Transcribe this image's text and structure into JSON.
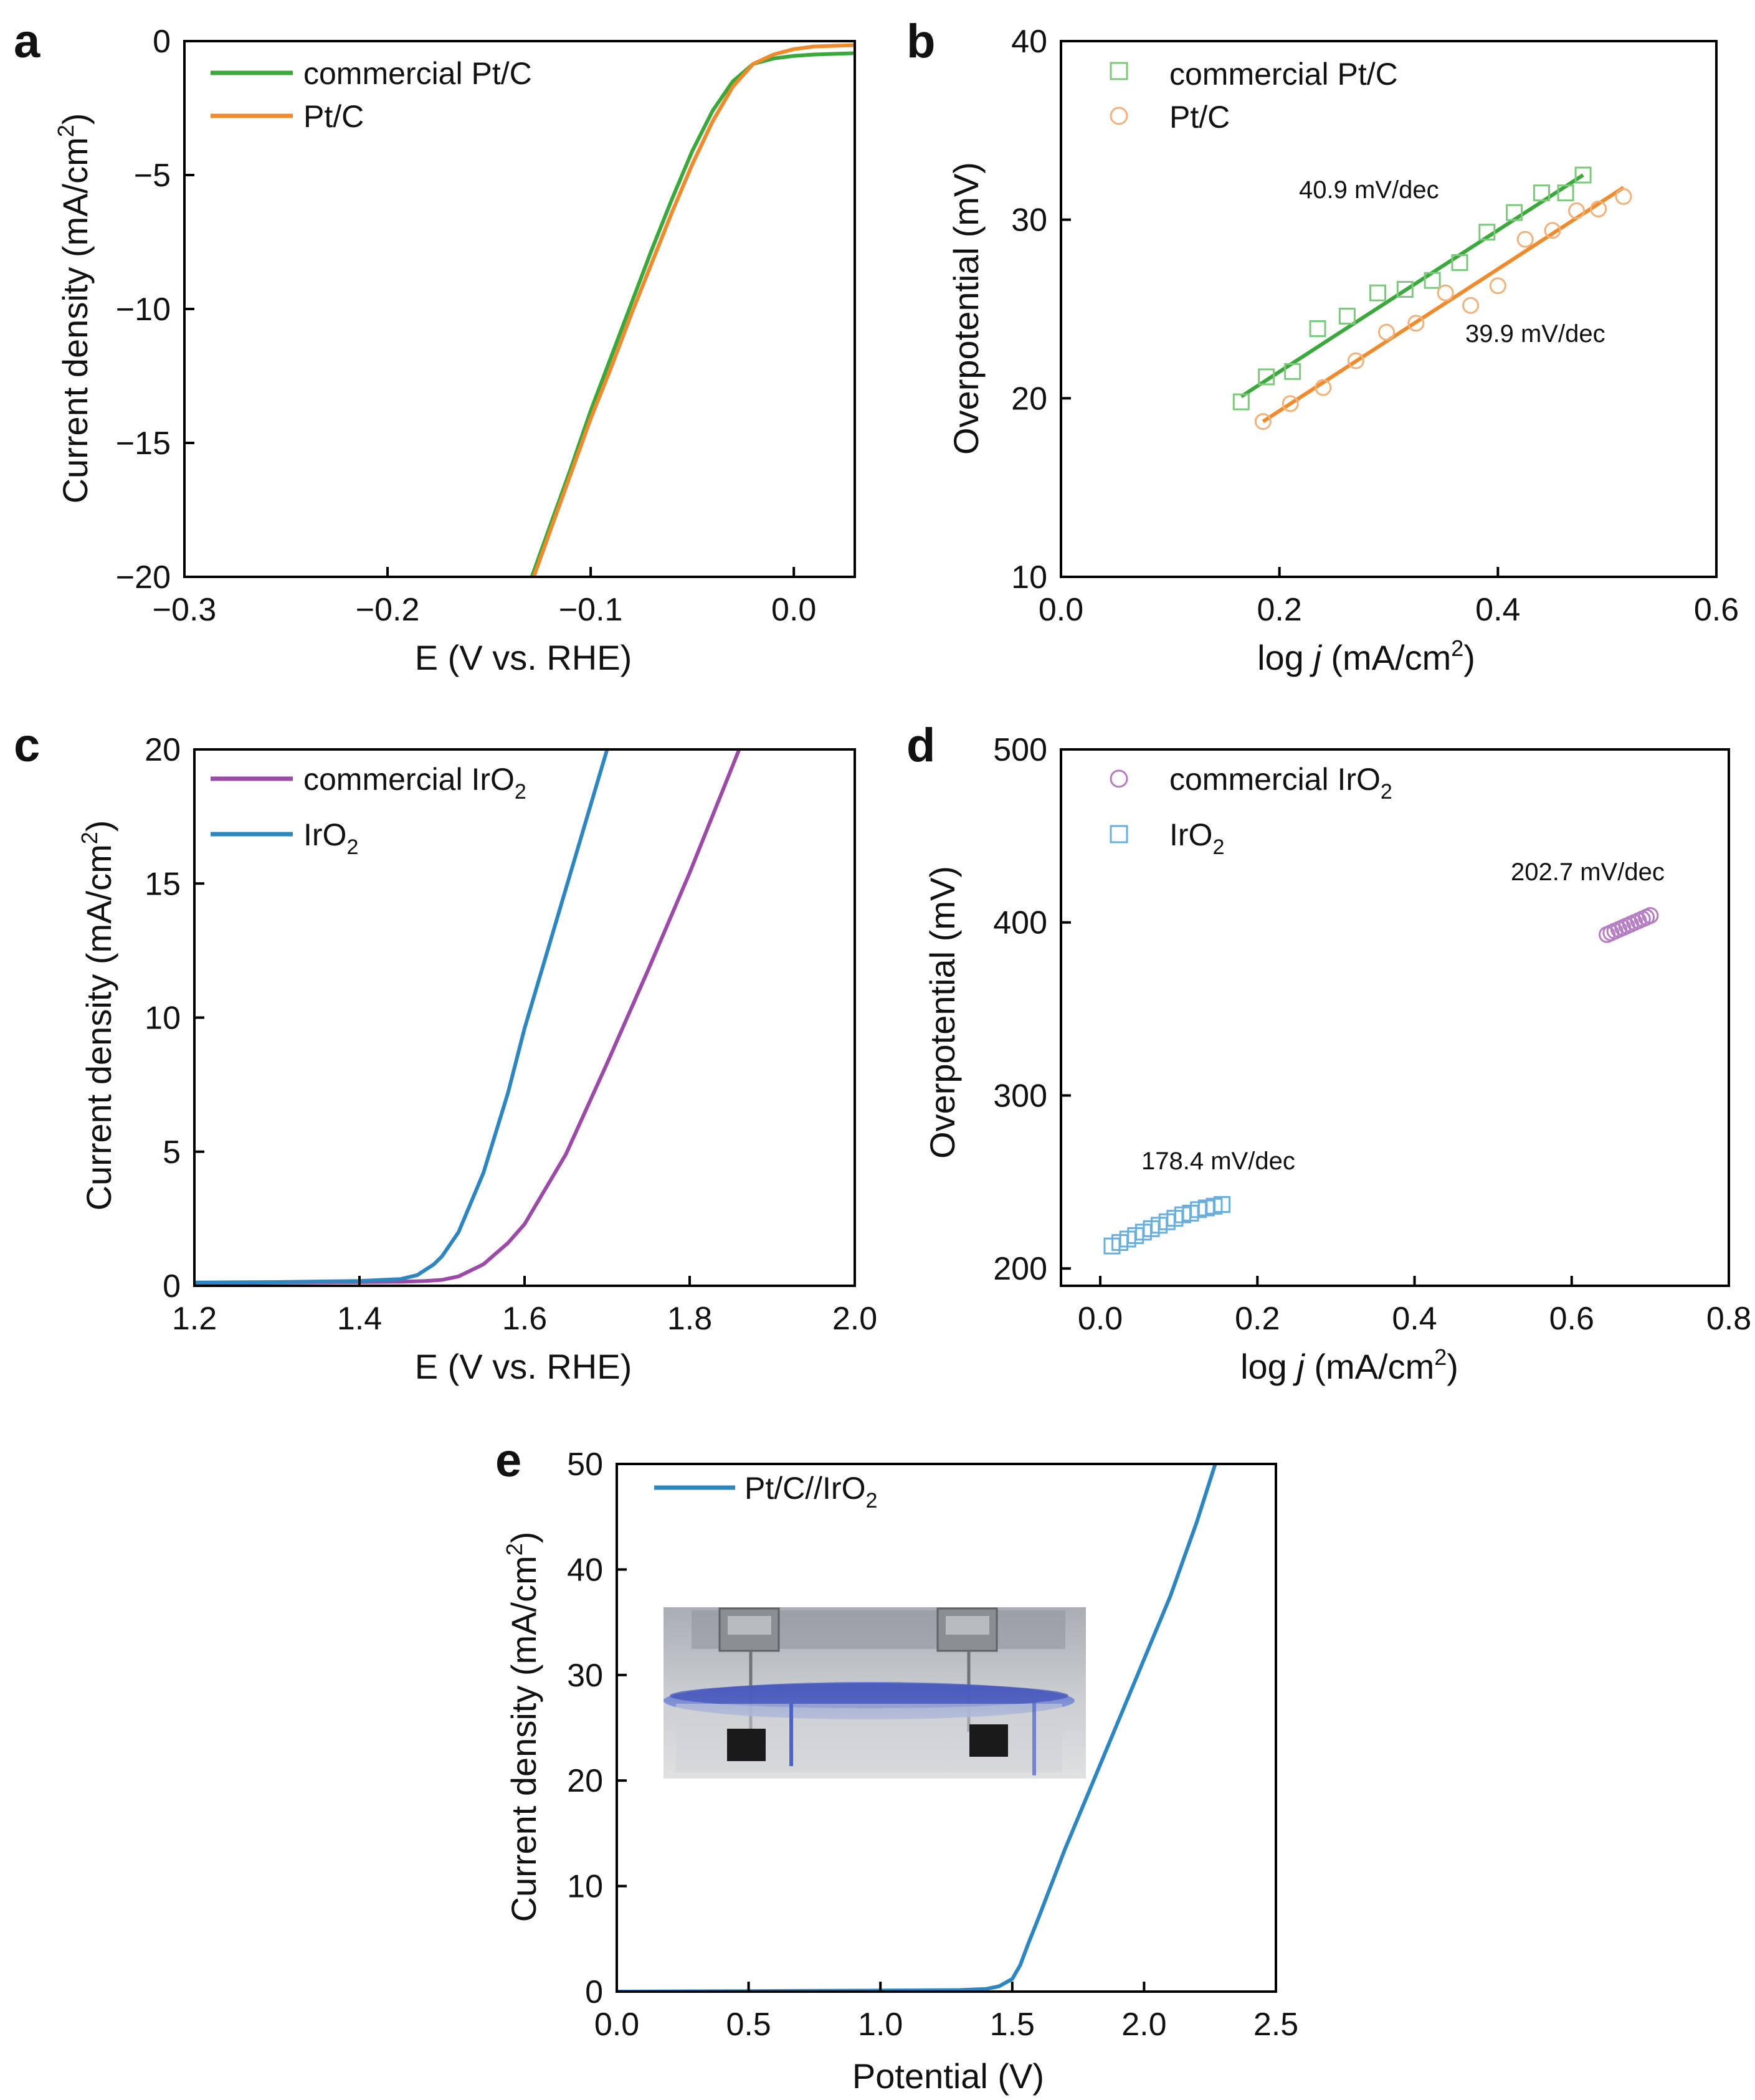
{
  "chart_data": [
    {
      "panel": "a",
      "type": "line",
      "xlabel": "E (V vs. RHE)",
      "ylabel": "Current density (mA/cm2)",
      "xlim": [
        -0.3,
        0.03
      ],
      "ylim": [
        -20,
        0
      ],
      "xticks": [
        -0.3,
        -0.2,
        -0.1,
        0.0
      ],
      "xtick_labels": [
        "−0.3",
        "−0.2",
        "−0.1",
        "0.0"
      ],
      "yticks": [
        -20,
        -15,
        -10,
        -5,
        0
      ],
      "ytick_labels": [
        "−20",
        "−15",
        "−10",
        "−5",
        "0"
      ],
      "series": [
        {
          "name": "commercial Pt/C",
          "color": "#3aa83a",
          "x": [
            -0.129,
            -0.12,
            -0.11,
            -0.1,
            -0.09,
            -0.08,
            -0.07,
            -0.06,
            -0.05,
            -0.04,
            -0.03,
            -0.02,
            -0.01,
            0.0,
            0.01,
            0.03
          ],
          "y": [
            -20,
            -18.1,
            -16.0,
            -13.8,
            -11.8,
            -9.8,
            -7.8,
            -5.9,
            -4.1,
            -2.6,
            -1.5,
            -0.85,
            -0.65,
            -0.55,
            -0.5,
            -0.45
          ]
        },
        {
          "name": "Pt/C",
          "color": "#ef8b2c",
          "x": [
            -0.128,
            -0.12,
            -0.11,
            -0.1,
            -0.09,
            -0.08,
            -0.07,
            -0.06,
            -0.05,
            -0.04,
            -0.03,
            -0.02,
            -0.01,
            0.0,
            0.01,
            0.03
          ],
          "y": [
            -20,
            -18.3,
            -16.2,
            -14.1,
            -12.2,
            -10.2,
            -8.3,
            -6.4,
            -4.6,
            -3.0,
            -1.7,
            -0.85,
            -0.5,
            -0.3,
            -0.2,
            -0.15
          ]
        }
      ]
    },
    {
      "panel": "b",
      "type": "scatter",
      "xlabel": "log j (mA/cm2)",
      "ylabel": "Overpotential (mV)",
      "xlim": [
        0.0,
        0.6
      ],
      "ylim": [
        10,
        40
      ],
      "xticks": [
        0.0,
        0.2,
        0.4,
        0.6
      ],
      "xtick_labels": [
        "0.0",
        "0.2",
        "0.4",
        "0.6"
      ],
      "yticks": [
        10,
        20,
        30,
        40
      ],
      "ytick_labels": [
        "10",
        "20",
        "30",
        "40"
      ],
      "series": [
        {
          "name": "commercial Pt/C",
          "color": "#3aa83a",
          "marker": "square",
          "x": [
            0.165,
            0.188,
            0.212,
            0.235,
            0.262,
            0.29,
            0.315,
            0.34,
            0.365,
            0.39,
            0.415,
            0.44,
            0.462,
            0.478
          ],
          "y": [
            19.8,
            21.2,
            21.5,
            23.9,
            24.6,
            25.9,
            26.1,
            26.6,
            27.6,
            29.3,
            30.4,
            31.5,
            31.5,
            32.5
          ],
          "fit": {
            "x": [
              0.165,
              0.478
            ],
            "y": [
              20.1,
              32.5
            ]
          },
          "annotation": "40.9 mV/dec"
        },
        {
          "name": "Pt/C",
          "color": "#ef8b2c",
          "marker": "circle",
          "x": [
            0.185,
            0.21,
            0.24,
            0.27,
            0.298,
            0.325,
            0.352,
            0.375,
            0.4,
            0.425,
            0.45,
            0.472,
            0.492,
            0.515
          ],
          "y": [
            18.7,
            19.7,
            20.6,
            22.1,
            23.7,
            24.2,
            25.9,
            25.2,
            26.3,
            28.9,
            29.4,
            30.5,
            30.6,
            31.3
          ],
          "fit": {
            "x": [
              0.185,
              0.515
            ],
            "y": [
              18.7,
              31.8
            ]
          },
          "annotation": "39.9 mV/dec"
        }
      ]
    },
    {
      "panel": "c",
      "type": "line",
      "xlabel": "E (V vs. RHE)",
      "ylabel": "Current density (mA/cm2)",
      "xlim": [
        1.2,
        2.0
      ],
      "ylim": [
        0,
        20
      ],
      "xticks": [
        1.2,
        1.4,
        1.6,
        1.8,
        2.0
      ],
      "xtick_labels": [
        "1.2",
        "1.4",
        "1.6",
        "1.8",
        "2.0"
      ],
      "yticks": [
        0,
        5,
        10,
        15,
        20
      ],
      "ytick_labels": [
        "0",
        "5",
        "10",
        "15",
        "20"
      ],
      "series": [
        {
          "name": "commercial IrO2",
          "color": "#9b4aa8",
          "x": [
            1.2,
            1.3,
            1.4,
            1.45,
            1.48,
            1.5,
            1.52,
            1.55,
            1.58,
            1.6,
            1.65,
            1.7,
            1.75,
            1.8,
            1.86
          ],
          "y": [
            0.1,
            0.12,
            0.14,
            0.15,
            0.18,
            0.22,
            0.35,
            0.8,
            1.6,
            2.3,
            4.9,
            8.3,
            11.8,
            15.4,
            20.0
          ]
        },
        {
          "name": "IrO2",
          "color": "#2e86c1",
          "x": [
            1.2,
            1.3,
            1.4,
            1.45,
            1.47,
            1.49,
            1.5,
            1.52,
            1.55,
            1.58,
            1.6,
            1.65,
            1.7
          ],
          "y": [
            0.12,
            0.14,
            0.18,
            0.25,
            0.4,
            0.8,
            1.1,
            2.0,
            4.2,
            7.2,
            9.6,
            14.8,
            20.0
          ]
        }
      ]
    },
    {
      "panel": "d",
      "type": "scatter",
      "xlabel": "log j (mA/cm2)",
      "ylabel": "Overpotential (mV)",
      "xlim": [
        -0.05,
        0.8
      ],
      "ylim": [
        190,
        500
      ],
      "xticks": [
        0.0,
        0.2,
        0.4,
        0.6,
        0.8
      ],
      "xtick_labels": [
        "0.0",
        "0.2",
        "0.4",
        "0.6",
        "0.8"
      ],
      "yticks": [
        200,
        300,
        400,
        500
      ],
      "ytick_labels": [
        "200",
        "300",
        "400",
        "500"
      ],
      "series": [
        {
          "name": "commercial IrO2",
          "color": "#9b4aa8",
          "marker": "circle",
          "x": [
            0.645,
            0.65,
            0.655,
            0.66,
            0.665,
            0.67,
            0.675,
            0.68,
            0.685,
            0.69,
            0.695,
            0.7
          ],
          "y": [
            393,
            394,
            395,
            396,
            397,
            398,
            399,
            400,
            401,
            402,
            403,
            404
          ],
          "annotation": "202.7 mV/dec"
        },
        {
          "name": "IrO2",
          "color": "#2e86c1",
          "marker": "square",
          "x": [
            0.015,
            0.025,
            0.035,
            0.045,
            0.055,
            0.065,
            0.075,
            0.085,
            0.095,
            0.105,
            0.115,
            0.125,
            0.135,
            0.145,
            0.155
          ],
          "y": [
            213,
            215,
            217,
            219,
            221,
            223,
            225,
            227,
            229,
            231,
            232,
            234,
            235,
            236,
            237
          ],
          "annotation": "178.4 mV/dec"
        }
      ]
    },
    {
      "panel": "e",
      "type": "line",
      "xlabel": "Potential (V)",
      "ylabel": "Current density (mA/cm2)",
      "xlim": [
        0.0,
        2.5
      ],
      "ylim": [
        0,
        50
      ],
      "xticks": [
        0.0,
        0.5,
        1.0,
        1.5,
        2.0,
        2.5
      ],
      "xtick_labels": [
        "0.0",
        "0.5",
        "1.0",
        "1.5",
        "2.0",
        "2.5"
      ],
      "yticks": [
        0,
        10,
        20,
        30,
        40,
        50
      ],
      "ytick_labels": [
        "0",
        "10",
        "20",
        "30",
        "40",
        "50"
      ],
      "series": [
        {
          "name": "Pt/C//IrO2",
          "color": "#2e86c1",
          "x": [
            0.0,
            0.5,
            1.0,
            1.3,
            1.4,
            1.45,
            1.5,
            1.53,
            1.56,
            1.6,
            1.7,
            1.8,
            1.9,
            2.0,
            2.1,
            2.2,
            2.27
          ],
          "y": [
            0.0,
            0.05,
            0.1,
            0.15,
            0.25,
            0.5,
            1.2,
            2.5,
            4.5,
            7.0,
            13.5,
            19.5,
            25.5,
            31.5,
            37.5,
            44.5,
            50.0
          ]
        }
      ]
    }
  ],
  "panels": {
    "a": {
      "label": "a",
      "legend": [
        "commercial Pt/C",
        "Pt/C"
      ],
      "ylabel_pre": "Current density (mA/cm",
      "ylabel_sup": "2",
      "ylabel_post": ")",
      "xlabel": "E (V vs. RHE)"
    },
    "b": {
      "label": "b",
      "legend": [
        "commercial Pt/C",
        "Pt/C"
      ],
      "ylabel": "Overpotential (mV)",
      "xlabel_pre": "log ",
      "xlabel_ital": "j",
      "xlabel_mid": " (mA/cm",
      "xlabel_sup": "2",
      "xlabel_post": ")",
      "ann1": "40.9 mV/dec",
      "ann2": "39.9 mV/dec"
    },
    "c": {
      "label": "c",
      "legend1_pre": "commercial IrO",
      "legend1_sub": "2",
      "legend2_pre": "IrO",
      "legend2_sub": "2",
      "ylabel_pre": "Current density (mA/cm",
      "ylabel_sup": "2",
      "ylabel_post": ")",
      "xlabel": "E (V vs. RHE)"
    },
    "d": {
      "label": "d",
      "legend1_pre": "commercial IrO",
      "legend1_sub": "2",
      "legend2_pre": "IrO",
      "legend2_sub": "2",
      "ylabel": "Overpotential (mV)",
      "xlabel_pre": "log ",
      "xlabel_ital": "j",
      "xlabel_mid": " (mA/cm",
      "xlabel_sup": "2",
      "xlabel_post": ")",
      "ann1": "202.7 mV/dec",
      "ann2": "178.4 mV/dec"
    },
    "e": {
      "label": "e",
      "legend_pre": "Pt/C//IrO",
      "legend_sub": "2",
      "ylabel_pre": "Current density (mA/cm",
      "ylabel_sup": "2",
      "ylabel_post": ")",
      "xlabel": "Potential (V)"
    }
  }
}
